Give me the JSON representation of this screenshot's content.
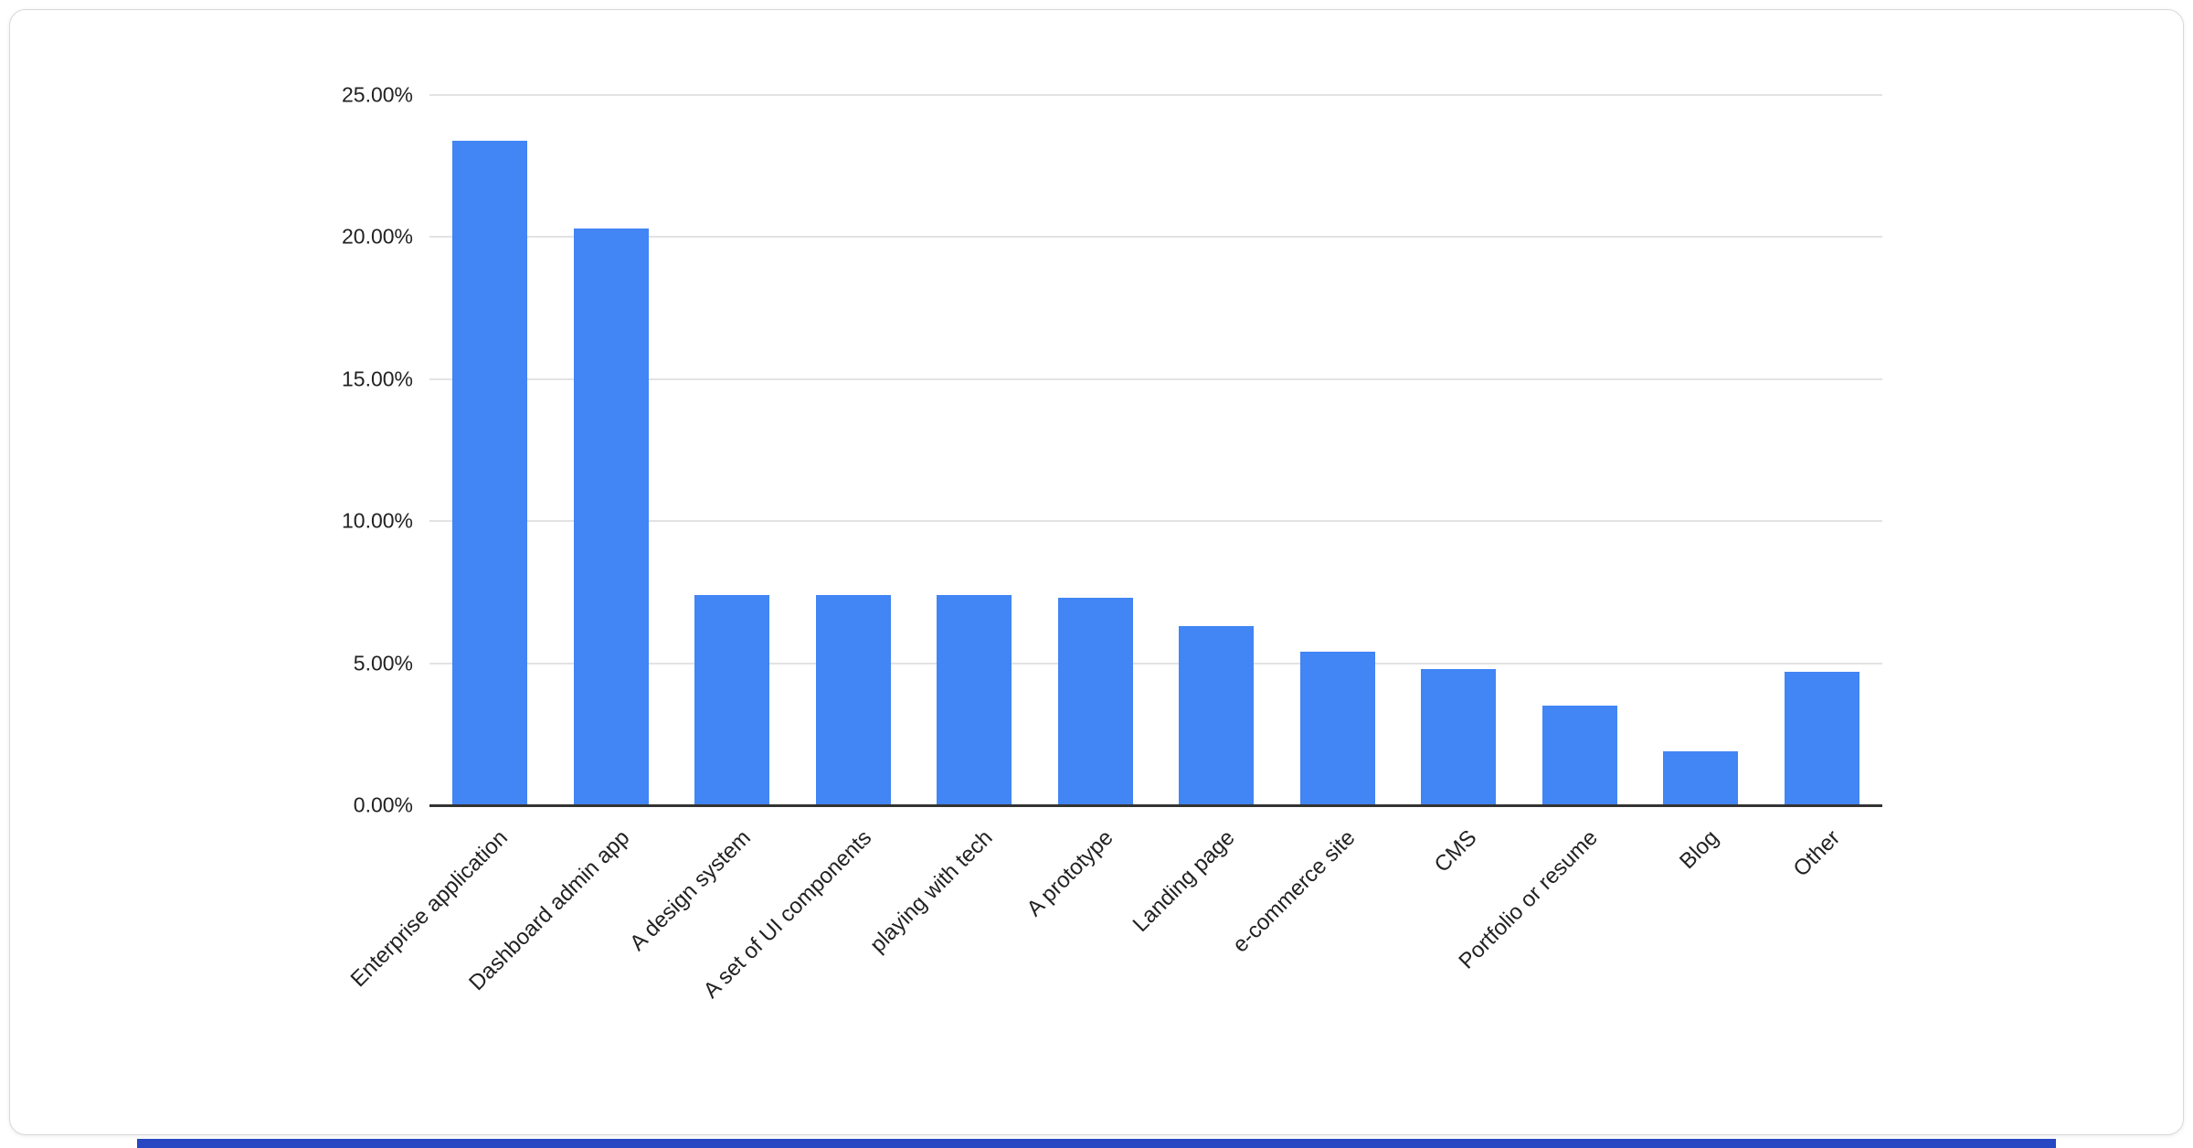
{
  "page": {
    "decor": {
      "bottom_bar_color": "#2748c2",
      "card_border_color": "#d9d9d9",
      "background_color": "#ffffff"
    }
  },
  "chart_data": {
    "type": "bar",
    "title": "",
    "xlabel": "",
    "ylabel": "",
    "categories": [
      "Enterprise application",
      "Dashboard admin app",
      "A design system",
      "A set of UI components",
      "playing with tech",
      "A prototype",
      "Landing page",
      "e-commerce site",
      "CMS",
      "Portfolio or resume",
      "Blog",
      "Other"
    ],
    "values": [
      23.4,
      20.3,
      7.4,
      7.4,
      7.4,
      7.3,
      6.3,
      5.4,
      4.8,
      3.5,
      1.9,
      4.7
    ],
    "ylim": [
      0,
      25
    ],
    "ytick_values": [
      0,
      5,
      10,
      15,
      20,
      25
    ],
    "ytick_labels": [
      "0.00%",
      "5.00%",
      "10.00%",
      "15.00%",
      "20.00%",
      "25.00%"
    ],
    "grid": true,
    "legend": "none",
    "bar_color": "#4285f4",
    "grid_color": "#e3e3e3",
    "axis_color": "#333333",
    "label_color": "#222222"
  }
}
